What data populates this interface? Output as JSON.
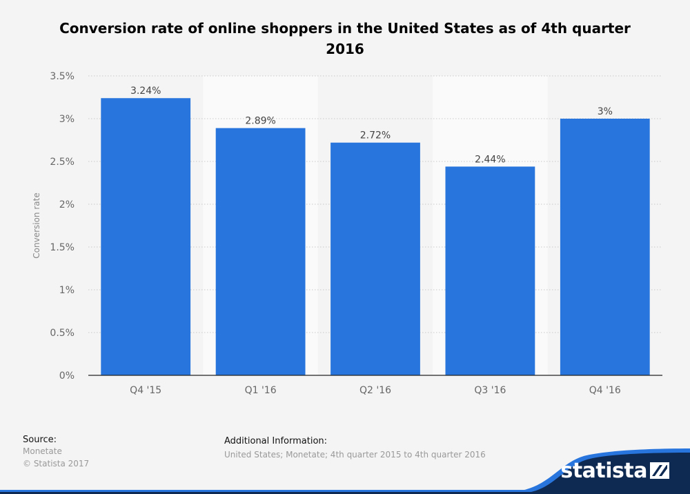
{
  "chart_data": {
    "type": "bar",
    "title": "Conversion rate of online shoppers in the United States as of 4th quarter 2016",
    "ylabel": "Conversion rate",
    "xlabel": "",
    "categories": [
      "Q4 '15",
      "Q1 '16",
      "Q2 '16",
      "Q3 '16",
      "Q4 '16"
    ],
    "values": [
      3.24,
      2.89,
      2.72,
      2.44,
      3.0
    ],
    "value_labels": [
      "3.24%",
      "2.89%",
      "2.72%",
      "2.44%",
      "3%"
    ],
    "yticks": [
      0,
      0.5,
      1,
      1.5,
      2,
      2.5,
      3,
      3.5
    ],
    "ytick_labels": [
      "0%",
      "0.5%",
      "1%",
      "1.5%",
      "2%",
      "2.5%",
      "3%",
      "3.5%"
    ],
    "ylim": [
      0,
      3.5
    ],
    "grid": true,
    "legend": "none",
    "bar_color": "#2876dd",
    "alt_band_color": "#fafafa"
  },
  "footer": {
    "source_heading": "Source:",
    "source_lines": [
      "Monetate",
      "© Statista 2017"
    ],
    "additional_heading": "Additional Information:",
    "additional_text": "United States; Monetate; 4th quarter 2015 to 4th quarter 2016"
  },
  "brand": {
    "name": "statista",
    "band_color": "#0f2a52",
    "accent_color": "#2876dd"
  }
}
